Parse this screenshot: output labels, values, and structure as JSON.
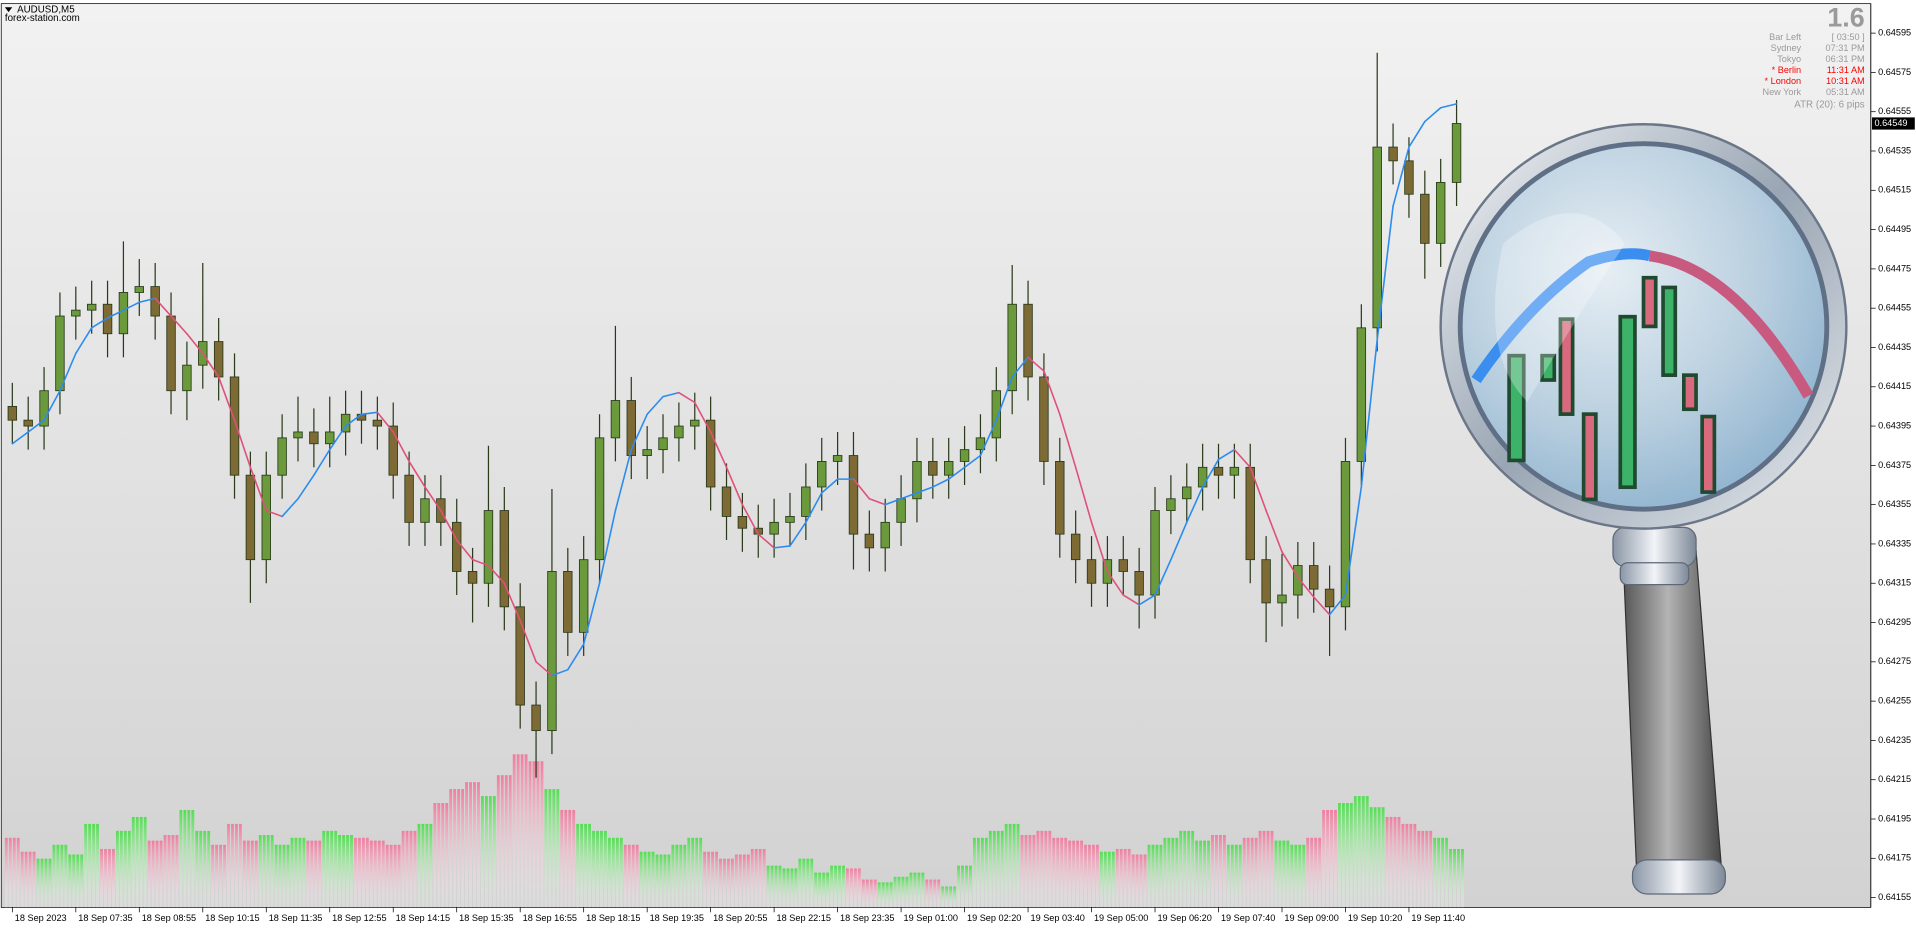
{
  "chart_data": {
    "type": "candlestick",
    "symbol": "AUDUSD,M5",
    "source": "forex-station.com",
    "spread": "1.6",
    "info": [
      {
        "label": "Bar Left",
        "value": "[ 03:50 ]",
        "color": "#9a9a9a"
      },
      {
        "label": "Sydney",
        "value": "07:31 PM",
        "color": "#9a9a9a"
      },
      {
        "label": "Tokyo",
        "value": "06:31 PM",
        "color": "#9a9a9a"
      },
      {
        "label": "* Berlin",
        "value": "11:31 AM",
        "color": "#ff0000"
      },
      {
        "label": "* London",
        "value": "10:31 AM",
        "color": "#ff0000"
      },
      {
        "label": "New York",
        "value": "05:31 AM",
        "color": "#9a9a9a"
      }
    ],
    "atr": "ATR (20): 6 pips",
    "open": [
      0.64405,
      0.64398,
      0.64395,
      0.64413,
      0.64451,
      0.64454,
      0.64457,
      0.64442,
      0.64463,
      0.64466,
      0.64451,
      0.64413,
      0.64426,
      0.64438,
      0.6442,
      0.6437,
      0.64327,
      0.6437,
      0.64389,
      0.64392,
      0.64386,
      0.64392,
      0.64401,
      0.64398,
      0.64395,
      0.6437,
      0.64346,
      0.64358,
      0.64346,
      0.64321,
      0.64315,
      0.64352,
      0.64303,
      0.64253,
      0.6424,
      0.64321,
      0.6429,
      0.64327,
      0.64389,
      0.64408,
      0.6438,
      0.64383,
      0.64389,
      0.64395,
      0.64398,
      0.64364,
      0.64349,
      0.64343,
      0.6434,
      0.64346,
      0.64349,
      0.64364,
      0.64377,
      0.6438,
      0.6434,
      0.64333,
      0.64346,
      0.64358,
      0.64377,
      0.6437,
      0.64377,
      0.64383,
      0.64389,
      0.64413,
      0.64457,
      0.6442,
      0.64377,
      0.6434,
      0.64327,
      0.64315,
      0.64327,
      0.64321,
      0.64309,
      0.64352,
      0.64358,
      0.64364,
      0.64374,
      0.6437,
      0.64374,
      0.64327,
      0.64305,
      0.64309,
      0.64324,
      0.64312,
      0.64303,
      0.64377,
      0.64445,
      0.64537,
      0.6453,
      0.64513,
      0.64488,
      0.64519
    ],
    "high": [
      0.64417,
      0.6441,
      0.64425,
      0.64463,
      0.64466,
      0.64469,
      0.64469,
      0.64489,
      0.6448,
      0.64478,
      0.64463,
      0.64438,
      0.64478,
      0.6445,
      0.64432,
      0.64382,
      0.64382,
      0.64401,
      0.6441,
      0.64404,
      0.6441,
      0.64413,
      0.64413,
      0.6441,
      0.64407,
      0.64382,
      0.6437,
      0.6437,
      0.64358,
      0.64333,
      0.64385,
      0.64364,
      0.64315,
      0.64265,
      0.64363,
      0.64333,
      0.64339,
      0.64401,
      0.64446,
      0.6442,
      0.64395,
      0.64401,
      0.64407,
      0.64412,
      0.6441,
      0.64376,
      0.64361,
      0.64355,
      0.64358,
      0.64361,
      0.64376,
      0.64389,
      0.64392,
      0.64392,
      0.64352,
      0.64358,
      0.6437,
      0.64389,
      0.64389,
      0.64389,
      0.64395,
      0.64401,
      0.64425,
      0.64477,
      0.64469,
      0.64432,
      0.64389,
      0.64352,
      0.64339,
      0.64339,
      0.64339,
      0.64333,
      0.64364,
      0.6437,
      0.64376,
      0.64386,
      0.64386,
      0.64386,
      0.64386,
      0.64339,
      0.6433,
      0.64336,
      0.64336,
      0.64324,
      0.64389,
      0.64457,
      0.64585,
      0.64549,
      0.64542,
      0.64525,
      0.64531,
      0.64561
    ],
    "low": [
      0.64386,
      0.64383,
      0.64383,
      0.64401,
      0.64439,
      0.64442,
      0.6443,
      0.6443,
      0.64451,
      0.64439,
      0.64401,
      0.64398,
      0.64414,
      0.64408,
      0.64358,
      0.64305,
      0.64315,
      0.64358,
      0.64377,
      0.64374,
      0.64374,
      0.6438,
      0.64386,
      0.64383,
      0.64358,
      0.64334,
      0.64334,
      0.64334,
      0.64309,
      0.64295,
      0.64303,
      0.64291,
      0.64241,
      0.64216,
      0.64228,
      0.64278,
      0.64278,
      0.64315,
      0.64377,
      0.64368,
      0.64368,
      0.64371,
      0.64377,
      0.64383,
      0.64352,
      0.64337,
      0.64331,
      0.64328,
      0.64328,
      0.64334,
      0.64337,
      0.64352,
      0.64365,
      0.64322,
      0.64321,
      0.64321,
      0.64334,
      0.64346,
      0.64358,
      0.64358,
      0.64365,
      0.64371,
      0.64377,
      0.64401,
      0.64408,
      0.64365,
      0.64328,
      0.64315,
      0.64303,
      0.64303,
      0.64309,
      0.64292,
      0.64297,
      0.6434,
      0.64346,
      0.64352,
      0.64358,
      0.64358,
      0.64315,
      0.64285,
      0.64293,
      0.64297,
      0.643,
      0.64278,
      0.64291,
      0.64365,
      0.64433,
      0.64518,
      0.64501,
      0.6447,
      0.64476,
      0.64507
    ],
    "close": [
      0.64398,
      0.64395,
      0.64413,
      0.64451,
      0.64454,
      0.64457,
      0.64442,
      0.64463,
      0.64466,
      0.64451,
      0.64413,
      0.64426,
      0.64438,
      0.6442,
      0.6437,
      0.64327,
      0.6437,
      0.64389,
      0.64392,
      0.64386,
      0.64392,
      0.64401,
      0.64398,
      0.64395,
      0.6437,
      0.64346,
      0.64358,
      0.64346,
      0.64321,
      0.64315,
      0.64352,
      0.64303,
      0.64253,
      0.6424,
      0.64321,
      0.6429,
      0.64327,
      0.64389,
      0.64408,
      0.6438,
      0.64383,
      0.64389,
      0.64395,
      0.64398,
      0.64364,
      0.64349,
      0.64343,
      0.6434,
      0.64346,
      0.64349,
      0.64364,
      0.64377,
      0.6438,
      0.6434,
      0.64333,
      0.64346,
      0.64358,
      0.64377,
      0.6437,
      0.64377,
      0.64383,
      0.64389,
      0.64413,
      0.64457,
      0.6442,
      0.64377,
      0.6434,
      0.64327,
      0.64315,
      0.64327,
      0.64321,
      0.64309,
      0.64352,
      0.64358,
      0.64364,
      0.64374,
      0.6437,
      0.64374,
      0.64327,
      0.64305,
      0.64309,
      0.64324,
      0.64312,
      0.64303,
      0.64377,
      0.64445,
      0.64537,
      0.6453,
      0.64513,
      0.64488,
      0.64519,
      0.64549
    ],
    "up_color": "#6a9a3c",
    "down_color": "#7d6a34",
    "outline_color": "#2a3a1a",
    "ma": {
      "values": [
        0.64386,
        0.64392,
        0.64398,
        0.64413,
        0.64432,
        0.64445,
        0.6445,
        0.64454,
        0.64458,
        0.6446,
        0.64451,
        0.64442,
        0.64432,
        0.6442,
        0.64398,
        0.64374,
        0.64352,
        0.64349,
        0.64358,
        0.6437,
        0.64383,
        0.64395,
        0.64401,
        0.64402,
        0.64392,
        0.64377,
        0.64364,
        0.64352,
        0.64337,
        0.64327,
        0.64324,
        0.64315,
        0.64296,
        0.64275,
        0.64268,
        0.64271,
        0.64284,
        0.64315,
        0.64352,
        0.64383,
        0.64401,
        0.6441,
        0.64412,
        0.64407,
        0.64392,
        0.64374,
        0.64355,
        0.6434,
        0.64333,
        0.64334,
        0.64346,
        0.64361,
        0.64368,
        0.64368,
        0.64358,
        0.64355,
        0.64358,
        0.64361,
        0.64364,
        0.64368,
        0.64374,
        0.6438,
        0.64398,
        0.6442,
        0.6443,
        0.64423,
        0.64401,
        0.64374,
        0.64346,
        0.64321,
        0.64309,
        0.64304,
        0.64309,
        0.64327,
        0.64346,
        0.64364,
        0.64378,
        0.64383,
        0.64374,
        0.64352,
        0.64331,
        0.64318,
        0.64308,
        0.64299,
        0.64309,
        0.64364,
        0.64439,
        0.64507,
        0.64537,
        0.6455,
        0.64557,
        0.64559
      ],
      "up_color": "#2b8cf0",
      "down_color": "#e0507a"
    },
    "volume": {
      "values": [
        50,
        40,
        35,
        45,
        38,
        60,
        42,
        55,
        65,
        48,
        52,
        70,
        55,
        45,
        60,
        48,
        52,
        45,
        50,
        48,
        55,
        52,
        50,
        48,
        45,
        55,
        60,
        75,
        85,
        90,
        80,
        95,
        110,
        105,
        85,
        70,
        60,
        55,
        50,
        45,
        40,
        38,
        45,
        50,
        40,
        35,
        38,
        42,
        30,
        28,
        35,
        25,
        30,
        28,
        20,
        18,
        22,
        25,
        20,
        15,
        30,
        50,
        55,
        60,
        52,
        55,
        50,
        48,
        45,
        40,
        42,
        38,
        45,
        50,
        55,
        48,
        52,
        45,
        50,
        55,
        48,
        45,
        50,
        70,
        75,
        80,
        72,
        65,
        60,
        55,
        50,
        42
      ],
      "lim": [
        0,
        140
      ],
      "up_color": "#55dd55",
      "down_color": "#ee7fa0"
    },
    "xlim": [
      -0.7,
      117.1
    ],
    "ylim": [
      0.6415,
      0.6461
    ],
    "yticks": [
      0.64155,
      0.64175,
      0.64195,
      0.64215,
      0.64235,
      0.64255,
      0.64275,
      0.64295,
      0.64315,
      0.64335,
      0.64355,
      0.64375,
      0.64395,
      0.64415,
      0.64435,
      0.64455,
      0.64475,
      0.64495,
      0.64515,
      0.64535,
      0.64555,
      0.64575,
      0.64595
    ],
    "xticks": [
      {
        "value": 0,
        "label": "18 Sep 2023"
      },
      {
        "value": 4,
        "label": "18 Sep 07:35"
      },
      {
        "value": 8,
        "label": "18 Sep 08:55"
      },
      {
        "value": 12,
        "label": "18 Sep 10:15"
      },
      {
        "value": 16,
        "label": "18 Sep 11:35"
      },
      {
        "value": 20,
        "label": "18 Sep 12:55"
      },
      {
        "value": 24,
        "label": "18 Sep 14:15"
      },
      {
        "value": 28,
        "label": "18 Sep 15:35"
      },
      {
        "value": 32,
        "label": "18 Sep 16:55"
      },
      {
        "value": 36,
        "label": "18 Sep 18:15"
      },
      {
        "value": 40,
        "label": "18 Sep 19:35"
      },
      {
        "value": 44,
        "label": "18 Sep 20:55"
      },
      {
        "value": 48,
        "label": "18 Sep 22:15"
      },
      {
        "value": 52,
        "label": "18 Sep 23:35"
      },
      {
        "value": 56,
        "label": "19 Sep 01:00"
      },
      {
        "value": 60,
        "label": "19 Sep 02:20"
      },
      {
        "value": 64,
        "label": "19 Sep 03:40"
      },
      {
        "value": 68,
        "label": "19 Sep 05:00"
      },
      {
        "value": 72,
        "label": "19 Sep 06:20"
      },
      {
        "value": 76,
        "label": "19 Sep 07:40"
      },
      {
        "value": 80,
        "label": "19 Sep 09:00"
      },
      {
        "value": 84,
        "label": "19 Sep 10:20"
      },
      {
        "value": 88,
        "label": "19 Sep 11:40"
      }
    ],
    "grid": false
  }
}
